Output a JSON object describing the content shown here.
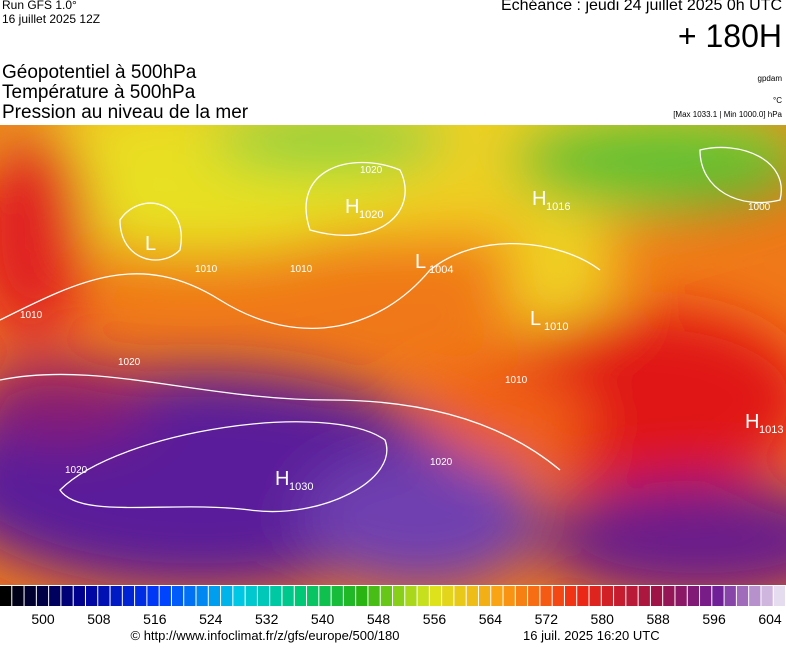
{
  "header": {
    "run": "Run GFS 1.0°",
    "run_date": "16 juillet 2025 12Z",
    "echeance": "Echéance : jeudi 24 juillet 2025 0h UTC",
    "lead": "+ 180H"
  },
  "titles": [
    "Géopotentiel à 500hPa",
    "Température à 500hPa",
    "Pression au niveau de la mer"
  ],
  "units": [
    "gpdam",
    "°C",
    "[Max 1033.1 | Min 1000.0] hPa"
  ],
  "centers": [
    {
      "letter": "H",
      "value": "1030"
    },
    {
      "letter": "H",
      "value": "1016"
    },
    {
      "letter": "L",
      "value": "1004"
    },
    {
      "letter": "H",
      "value": "1013"
    },
    {
      "letter": "H",
      "value": "1020"
    },
    {
      "letter": "L",
      "value": "1010"
    },
    {
      "letter": "L",
      "value": ""
    }
  ],
  "isobars": [
    "1020",
    "1010",
    "1020",
    "1010",
    "1020",
    "1010",
    "1020",
    "1000",
    "1010"
  ],
  "colorbar": [
    500,
    508,
    516,
    524,
    532,
    540,
    548,
    556,
    564,
    572,
    580,
    588,
    596,
    604
  ],
  "footer": {
    "url": "© http://www.infoclimat.fr/z/gfs/europe/500/180",
    "timestamp": "16 juil. 2025 16:20 UTC"
  }
}
